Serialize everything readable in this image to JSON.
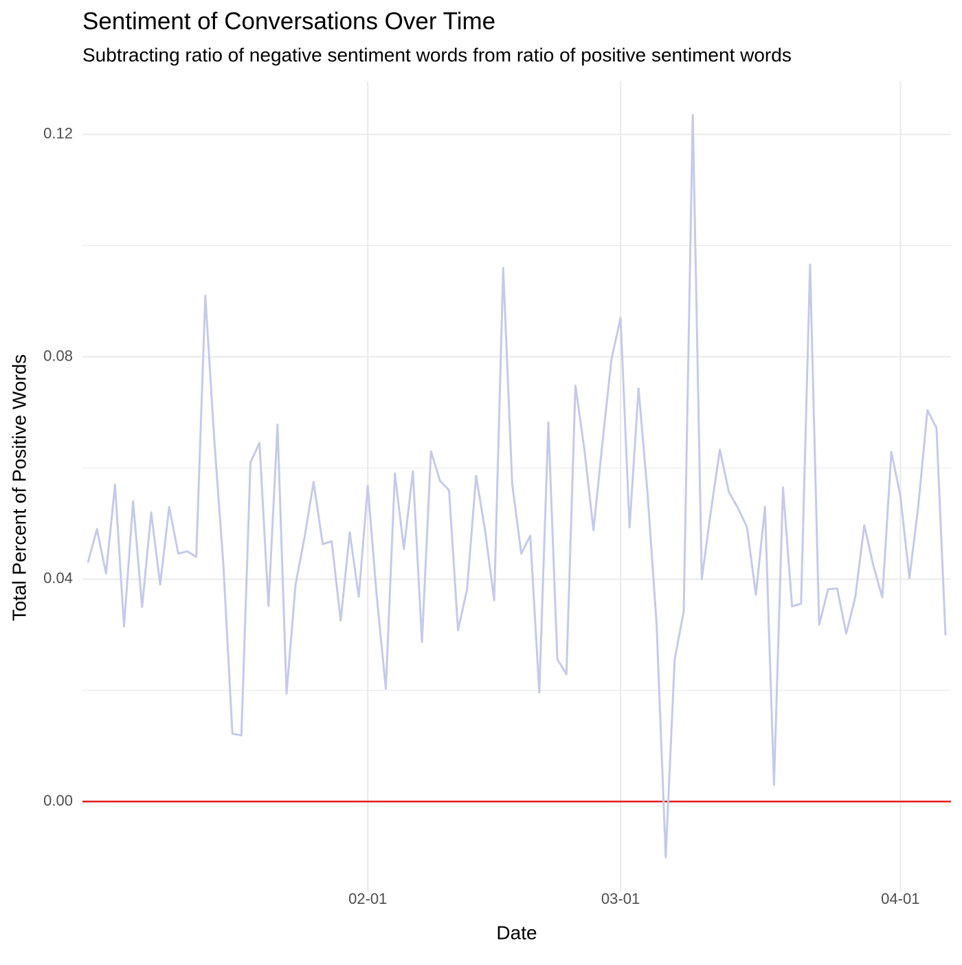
{
  "chart_data": {
    "type": "line",
    "title": "Sentiment of Conversations Over Time",
    "subtitle": "Subtracting ratio of negative sentiment words from ratio of positive sentiment words",
    "xlabel": "Date",
    "ylabel": "Total Percent of Positive Words",
    "x": [
      "01-01",
      "01-02",
      "01-03",
      "01-04",
      "01-05",
      "01-06",
      "01-07",
      "01-08",
      "01-09",
      "01-10",
      "01-11",
      "01-12",
      "01-13",
      "01-14",
      "01-15",
      "01-16",
      "01-17",
      "01-18",
      "01-19",
      "01-20",
      "01-21",
      "01-22",
      "01-23",
      "01-24",
      "01-25",
      "01-26",
      "01-27",
      "01-28",
      "01-29",
      "01-30",
      "01-31",
      "02-01",
      "02-02",
      "02-03",
      "02-04",
      "02-05",
      "02-06",
      "02-07",
      "02-08",
      "02-09",
      "02-10",
      "02-11",
      "02-12",
      "02-13",
      "02-14",
      "02-15",
      "02-16",
      "02-17",
      "02-18",
      "02-19",
      "02-20",
      "02-21",
      "02-22",
      "02-23",
      "02-24",
      "02-25",
      "02-26",
      "02-27",
      "02-28",
      "03-01",
      "03-02",
      "03-03",
      "03-04",
      "03-05",
      "03-06",
      "03-07",
      "03-08",
      "03-09",
      "03-10",
      "03-11",
      "03-12",
      "03-13",
      "03-14",
      "03-15",
      "03-16",
      "03-17",
      "03-18",
      "03-19",
      "03-20",
      "03-21",
      "03-22",
      "03-23",
      "03-24",
      "03-25",
      "03-26",
      "03-27",
      "03-28",
      "03-29",
      "03-30",
      "03-31",
      "04-01",
      "04-02",
      "04-03",
      "04-04",
      "04-05",
      "04-06"
    ],
    "values": [
      0.043,
      0.049,
      0.041,
      0.057,
      0.0315,
      0.054,
      0.035,
      0.052,
      0.039,
      0.053,
      0.0446,
      0.045,
      0.044,
      0.091,
      0.065,
      0.0425,
      0.0122,
      0.0119,
      0.061,
      0.0645,
      0.0352,
      0.0678,
      0.0194,
      0.039,
      0.0476,
      0.0575,
      0.0463,
      0.0468,
      0.0325,
      0.0484,
      0.0368,
      0.0568,
      0.0367,
      0.0203,
      0.059,
      0.0454,
      0.0594,
      0.0287,
      0.063,
      0.0577,
      0.056,
      0.0308,
      0.0382,
      0.0586,
      0.0487,
      0.0362,
      0.096,
      0.0571,
      0.0446,
      0.0478,
      0.0196,
      0.0682,
      0.0256,
      0.0229,
      0.0748,
      0.0633,
      0.0488,
      0.0646,
      0.0796,
      0.087,
      0.0493,
      0.0743,
      0.0552,
      0.0318,
      -0.01,
      0.0256,
      0.0342,
      0.1235,
      0.04,
      0.0521,
      0.0633,
      0.0557,
      0.0528,
      0.0494,
      0.0372,
      0.053,
      0.003,
      0.0565,
      0.0351,
      0.0356,
      0.0966,
      0.0318,
      0.0382,
      0.0383,
      0.0302,
      0.0367,
      0.0497,
      0.0425,
      0.0367,
      0.0629,
      0.055,
      0.0402,
      0.0534,
      0.0704,
      0.0672,
      0.0299
    ],
    "color": "#c5cae9",
    "xlim": [
      "01-01",
      "04-06"
    ],
    "xticks": [
      "02-01",
      "03-01",
      "04-01"
    ],
    "ylim": [
      -0.0152,
      0.1296
    ],
    "yticks": [
      {
        "value": 0,
        "label": "0.00"
      },
      0.04,
      0.08,
      0.12
    ],
    "y_minor_grid": [
      0.02,
      0.06,
      0.1
    ],
    "hline": 0,
    "hline_color": "#e41a1c",
    "grid": true
  }
}
